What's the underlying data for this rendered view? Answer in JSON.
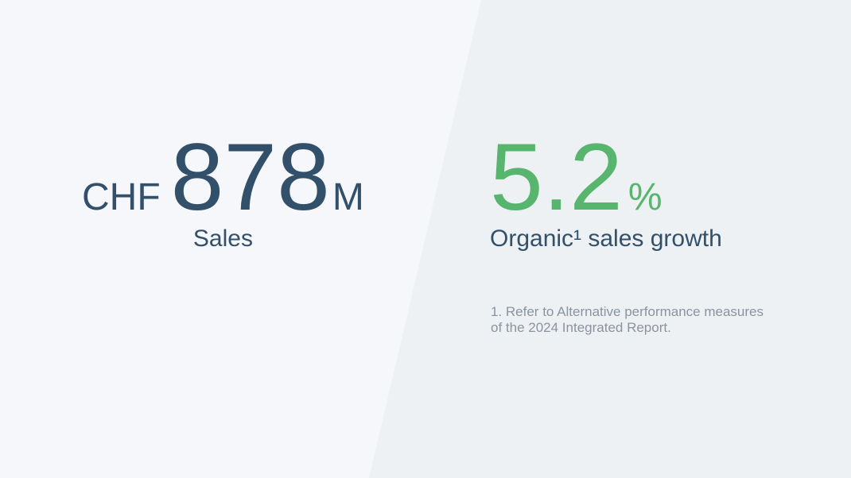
{
  "colors": {
    "background_left": "#f6f7fa",
    "background_right": "#edf1f3",
    "primary_text_blue": "#33506b",
    "accent_green": "#57b56e",
    "footnote_gray": "#8b93a1"
  },
  "left_stat": {
    "currency": "CHF",
    "value": "878",
    "unit": "M",
    "label": "Sales"
  },
  "right_stat": {
    "value": "5.2",
    "unit": "%",
    "label": "Organic¹ sales growth",
    "footnote_lines": [
      "1. Refer to Alternative performance measures",
      "of the 2024 Integrated Report."
    ]
  }
}
